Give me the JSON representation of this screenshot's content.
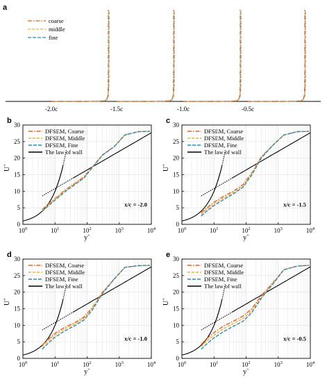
{
  "panel_a": {
    "label": "a",
    "legend": [
      "coarse",
      "middle",
      "fine"
    ],
    "x_labels": [
      "-2.0c",
      "-1.5c",
      "-1.0c",
      "-0.5c"
    ]
  },
  "colors": {
    "coarse": "#e8601c",
    "middle": "#f2b134",
    "fine": "#2e86c1",
    "law": "#000000",
    "grid": "#dcdcdc"
  },
  "chart_data": [
    {
      "type": "line",
      "panel": "a",
      "description_none": "",
      "categories": [
        "-2.0c",
        "-1.5c",
        "-1.0c",
        "-0.5c"
      ],
      "series": [
        {
          "name": "coarse"
        },
        {
          "name": "middle"
        },
        {
          "name": "fine"
        }
      ]
    },
    {
      "type": "line",
      "panel": "b",
      "annotation": "x/c = -2.0",
      "xlabel": "y+",
      "ylabel": "U+",
      "xscale": "log",
      "xlim": [
        1,
        10000
      ],
      "ylim": [
        0,
        30
      ],
      "xticks": [
        "10^0",
        "10^1",
        "10^2",
        "10^3",
        "10^4"
      ],
      "yticks": [
        0,
        5,
        10,
        15,
        20,
        25,
        30
      ],
      "legend_loc": "top-left",
      "series": [
        {
          "name": "DFSEM, Coarse",
          "x": [
            4,
            6,
            10,
            20,
            40,
            80,
            150,
            300,
            700,
            1500,
            4000,
            9000
          ],
          "y": [
            4.5,
            6.0,
            7.8,
            10.3,
            12.3,
            14.4,
            17.5,
            21.0,
            23.5,
            27.0,
            28.0,
            28.1
          ]
        },
        {
          "name": "DFSEM, Middle",
          "x": [
            4,
            6,
            10,
            20,
            40,
            80,
            150,
            300,
            700,
            1500,
            4000,
            9000
          ],
          "y": [
            4.2,
            5.8,
            7.6,
            10.1,
            12.1,
            14.2,
            17.4,
            21.0,
            23.5,
            27.0,
            28.0,
            28.1
          ]
        },
        {
          "name": "DFSEM, Fine",
          "x": [
            4,
            6,
            10,
            20,
            40,
            80,
            150,
            300,
            700,
            1500,
            4000,
            9000
          ],
          "y": [
            3.9,
            5.5,
            7.3,
            9.8,
            11.9,
            14.0,
            17.3,
            20.9,
            23.5,
            27.0,
            28.0,
            28.1
          ]
        }
      ]
    },
    {
      "type": "line",
      "panel": "c",
      "annotation": "x/c = -1.5",
      "xlabel": "y+",
      "ylabel": "U+",
      "xscale": "log",
      "xlim": [
        1,
        10000
      ],
      "ylim": [
        0,
        30
      ],
      "xticks": [
        "10^0",
        "10^1",
        "10^2",
        "10^3",
        "10^4"
      ],
      "yticks": [
        0,
        5,
        10,
        15,
        20,
        25,
        30
      ],
      "legend_loc": "top-left",
      "series": [
        {
          "name": "DFSEM, Coarse",
          "x": [
            4,
            6,
            10,
            20,
            40,
            80,
            150,
            300,
            700,
            1500,
            4000,
            9000
          ],
          "y": [
            3.5,
            5.0,
            6.7,
            8.5,
            10.0,
            12.0,
            15.5,
            20.5,
            24.0,
            27.0,
            28.0,
            28.1
          ]
        },
        {
          "name": "DFSEM, Middle",
          "x": [
            4,
            6,
            10,
            20,
            40,
            80,
            150,
            300,
            700,
            1500,
            4000,
            9000
          ],
          "y": [
            3.0,
            4.5,
            6.2,
            8.0,
            9.6,
            11.6,
            15.2,
            20.3,
            24.0,
            27.0,
            28.0,
            28.1
          ]
        },
        {
          "name": "DFSEM, Fine",
          "x": [
            4,
            6,
            10,
            20,
            40,
            80,
            150,
            300,
            700,
            1500,
            4000,
            9000
          ],
          "y": [
            2.5,
            4.0,
            5.7,
            7.5,
            9.2,
            11.2,
            14.9,
            20.1,
            24.0,
            27.0,
            28.0,
            28.1
          ]
        }
      ]
    },
    {
      "type": "line",
      "panel": "d",
      "annotation": "x/c = -1.0",
      "xlabel": "y+",
      "ylabel": "U+",
      "xscale": "log",
      "xlim": [
        1,
        10000
      ],
      "ylim": [
        0,
        30
      ],
      "xticks": [
        "10^0",
        "10^1",
        "10^2",
        "10^3",
        "10^4"
      ],
      "yticks": [
        0,
        5,
        10,
        15,
        20,
        25,
        30
      ],
      "legend_loc": "top-left",
      "series": [
        {
          "name": "DFSEM, Coarse",
          "x": [
            4,
            6,
            10,
            20,
            40,
            80,
            150,
            300,
            700,
            1500,
            4000,
            9000
          ],
          "y": [
            4.0,
            5.7,
            7.6,
            9.4,
            10.7,
            12.5,
            15.5,
            20.0,
            24.0,
            27.5,
            28.0,
            28.1
          ]
        },
        {
          "name": "DFSEM, Middle",
          "x": [
            4,
            6,
            10,
            20,
            40,
            80,
            150,
            300,
            700,
            1500,
            4000,
            9000
          ],
          "y": [
            3.5,
            5.2,
            7.1,
            8.9,
            10.3,
            12.1,
            15.2,
            19.8,
            24.0,
            27.5,
            28.0,
            28.1
          ]
        },
        {
          "name": "DFSEM, Fine",
          "x": [
            4,
            6,
            10,
            20,
            40,
            80,
            150,
            300,
            700,
            1500,
            4000,
            9000
          ],
          "y": [
            2.8,
            4.5,
            6.4,
            8.3,
            9.8,
            11.6,
            14.8,
            19.6,
            24.0,
            27.5,
            28.0,
            28.1
          ]
        }
      ]
    },
    {
      "type": "line",
      "panel": "e",
      "annotation": "x/c = -0.5",
      "xlabel": "y+",
      "ylabel": "U+",
      "xscale": "log",
      "xlim": [
        1,
        10000
      ],
      "ylim": [
        0,
        30
      ],
      "xticks": [
        "10^0",
        "10^1",
        "10^2",
        "10^3",
        "10^4"
      ],
      "yticks": [
        0,
        5,
        10,
        15,
        20,
        25,
        30
      ],
      "legend_loc": "top-left",
      "series": [
        {
          "name": "DFSEM, Coarse",
          "x": [
            4,
            6,
            10,
            20,
            40,
            80,
            150,
            300,
            700,
            1500,
            4000,
            9000
          ],
          "y": [
            4.2,
            6.0,
            7.8,
            9.8,
            11.2,
            12.8,
            15.0,
            19.0,
            23.0,
            26.8,
            27.9,
            28.1
          ]
        },
        {
          "name": "DFSEM, Middle",
          "x": [
            4,
            6,
            10,
            20,
            40,
            80,
            150,
            300,
            700,
            1500,
            4000,
            9000
          ],
          "y": [
            3.6,
            5.3,
            7.0,
            9.0,
            10.5,
            12.0,
            14.4,
            18.6,
            22.8,
            26.8,
            27.9,
            28.1
          ]
        },
        {
          "name": "DFSEM, Fine",
          "x": [
            4,
            6,
            10,
            20,
            40,
            80,
            150,
            300,
            700,
            1500,
            4000,
            9000
          ],
          "y": [
            2.8,
            4.4,
            6.2,
            8.1,
            9.7,
            11.2,
            13.8,
            18.2,
            22.6,
            26.8,
            27.9,
            28.1
          ]
        }
      ]
    }
  ],
  "law_of_wall": {
    "name": "The law of wall"
  }
}
